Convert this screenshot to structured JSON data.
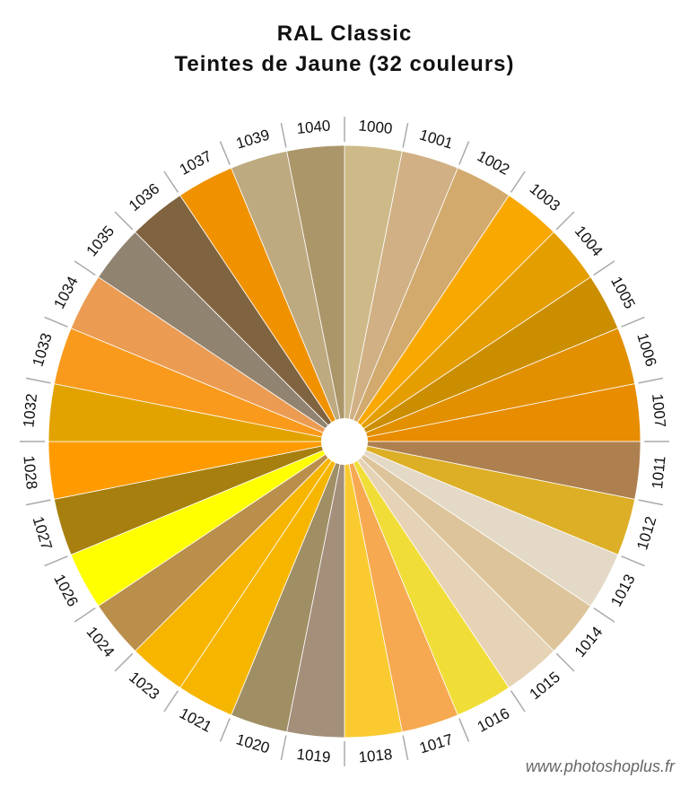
{
  "header": {
    "title": "RAL Classic",
    "subtitle": "Teintes de Jaune (32 couleurs)"
  },
  "footer": {
    "credit": "www.photoshoplus.fr"
  },
  "chart_data": {
    "type": "pie",
    "title": "RAL Classic",
    "subtitle": "Teintes de Jaune (32 couleurs)",
    "legend": "none",
    "slices": [
      {
        "label": "1000",
        "value": 1,
        "color": "#CDBA88"
      },
      {
        "label": "1001",
        "value": 1,
        "color": "#D0B084"
      },
      {
        "label": "1002",
        "value": 1,
        "color": "#D2AA6D"
      },
      {
        "label": "1003",
        "value": 1,
        "color": "#F9A800"
      },
      {
        "label": "1004",
        "value": 1,
        "color": "#E49E00"
      },
      {
        "label": "1005",
        "value": 1,
        "color": "#CB8E00"
      },
      {
        "label": "1006",
        "value": 1,
        "color": "#E29000"
      },
      {
        "label": "1007",
        "value": 1,
        "color": "#E88C00"
      },
      {
        "label": "1011",
        "value": 1,
        "color": "#AF804F"
      },
      {
        "label": "1012",
        "value": 1,
        "color": "#DDAF27"
      },
      {
        "label": "1013",
        "value": 1,
        "color": "#E3D9C6"
      },
      {
        "label": "1014",
        "value": 1,
        "color": "#DDC49A"
      },
      {
        "label": "1015",
        "value": 1,
        "color": "#E6D2B5"
      },
      {
        "label": "1016",
        "value": 1,
        "color": "#F1DD38"
      },
      {
        "label": "1017",
        "value": 1,
        "color": "#F6A950"
      },
      {
        "label": "1018",
        "value": 1,
        "color": "#FACA30"
      },
      {
        "label": "1019",
        "value": 1,
        "color": "#A48F7A"
      },
      {
        "label": "1020",
        "value": 1,
        "color": "#A08F65"
      },
      {
        "label": "1021",
        "value": 1,
        "color": "#F6B600"
      },
      {
        "label": "1023",
        "value": 1,
        "color": "#F7B500"
      },
      {
        "label": "1024",
        "value": 1,
        "color": "#BA8F4C"
      },
      {
        "label": "1026",
        "value": 1,
        "color": "#FFFF00"
      },
      {
        "label": "1027",
        "value": 1,
        "color": "#A77F0E"
      },
      {
        "label": "1028",
        "value": 1,
        "color": "#FF9B00"
      },
      {
        "label": "1032",
        "value": 1,
        "color": "#E2A300"
      },
      {
        "label": "1033",
        "value": 1,
        "color": "#F99A1C"
      },
      {
        "label": "1034",
        "value": 1,
        "color": "#EB9C52"
      },
      {
        "label": "1035",
        "value": 1,
        "color": "#908370"
      },
      {
        "label": "1036",
        "value": 1,
        "color": "#80643F"
      },
      {
        "label": "1037",
        "value": 1,
        "color": "#F09200"
      },
      {
        "label": "1039",
        "value": 1,
        "color": "#BEAA80"
      },
      {
        "label": "1040",
        "value": 1,
        "color": "#AB966A"
      }
    ]
  }
}
